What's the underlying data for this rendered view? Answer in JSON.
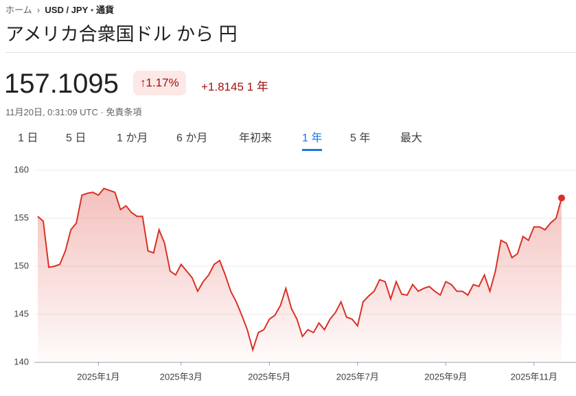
{
  "header": {
    "breadcrumb": [
      "ホーム",
      "USD / JPY",
      "通貨"
    ],
    "title": "アメリカ合衆国ドル から 円",
    "price": "157.1095",
    "change_percent": "1.17%",
    "change": "+1.8145",
    "change_period": "1 年",
    "timestamp": "11月20日, 0:31:09 UTC · 免責条項"
  },
  "tabs": {
    "items": [
      "1 日",
      "5 日",
      "1 か月",
      "6 か月",
      "年初来",
      "1 年",
      "5 年",
      "最大"
    ],
    "selected": 5
  },
  "chart_data": {
    "type": "line",
    "color": "#d93025",
    "categories": [
      null,
      null,
      null,
      null,
      null,
      null,
      null,
      null,
      null,
      null,
      null,
      "2025年1月",
      null,
      null,
      null,
      null,
      null,
      null,
      null,
      null,
      null,
      null,
      null,
      null,
      null,
      null,
      "2025年3月",
      null,
      null,
      null,
      null,
      null,
      null,
      null,
      null,
      null,
      null,
      null,
      null,
      null,
      null,
      null,
      "2025年5月",
      null,
      null,
      null,
      null,
      null,
      null,
      null,
      null,
      null,
      null,
      null,
      null,
      null,
      null,
      null,
      "2025年7月",
      null,
      null,
      null,
      null,
      null,
      null,
      null,
      null,
      null,
      null,
      null,
      null,
      null,
      null,
      null,
      "2025年9月",
      null,
      null,
      null,
      null,
      null,
      null,
      null,
      null,
      null,
      null,
      null,
      null,
      null,
      null,
      null,
      "2025年11月",
      null,
      null,
      null,
      null,
      null
    ],
    "values": [
      155.2,
      154.7,
      149.9,
      150.0,
      150.2,
      151.6,
      153.8,
      154.5,
      157.4,
      157.6,
      157.7,
      157.4,
      158.1,
      157.9,
      157.7,
      155.9,
      156.3,
      155.6,
      155.2,
      155.2,
      151.6,
      151.4,
      153.8,
      152.4,
      149.5,
      149.1,
      150.2,
      149.5,
      148.8,
      147.4,
      148.4,
      149.1,
      150.2,
      150.6,
      149.1,
      147.4,
      146.3,
      144.9,
      143.4,
      141.3,
      143.1,
      143.4,
      144.5,
      144.9,
      145.9,
      147.7,
      145.6,
      144.5,
      142.7,
      143.4,
      143.1,
      144.1,
      143.4,
      144.5,
      145.2,
      146.3,
      144.7,
      144.5,
      143.8,
      146.3,
      146.9,
      147.4,
      148.6,
      148.4,
      146.6,
      148.4,
      147.1,
      147.0,
      148.1,
      147.4,
      147.7,
      147.9,
      147.4,
      147.0,
      148.4,
      148.1,
      147.4,
      147.4,
      147.0,
      148.1,
      147.9,
      149.1,
      147.4,
      149.5,
      152.7,
      152.4,
      150.9,
      151.3,
      153.1,
      152.7,
      154.1,
      154.1,
      153.8,
      154.5,
      155.0,
      157.1095
    ],
    "ylim": [
      140,
      160
    ],
    "yticks": [
      140,
      145,
      150,
      155,
      160
    ],
    "grid": true
  }
}
